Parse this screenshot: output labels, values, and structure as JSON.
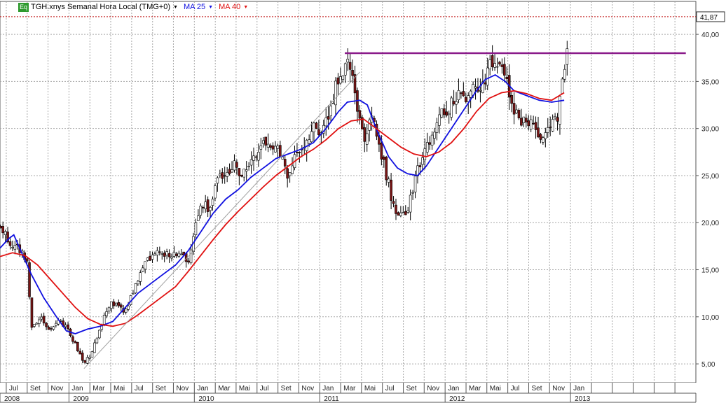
{
  "legend": {
    "badge": "Eq",
    "instrument": "TGH.xnys Semanal Hora Local (TMG+0)",
    "dropdown_glyph": "▼",
    "ma25_label": "MA 25",
    "ma40_label": "MA 40",
    "ma25_color": "#1010e0",
    "ma40_color": "#e01010"
  },
  "last_price_label": "41,87",
  "chart_data": {
    "type": "candlestick",
    "title": "TGH.xnys Semanal Hora Local (TMG+0)",
    "price_axis_side": "right",
    "y_ticks": [
      "5,00",
      "10,00",
      "15,00",
      "20,00",
      "25,00",
      "30,00",
      "35,00",
      "40,00"
    ],
    "y_tick_values": [
      5,
      10,
      15,
      20,
      25,
      30,
      35,
      40
    ],
    "ylim": [
      3.0,
      43.5
    ],
    "xlim": [
      2008.45,
      2014.0
    ],
    "x_tick_labels": [
      "Jul",
      "Set",
      "Nov",
      "Jan",
      "Mar",
      "Mai",
      "Jul",
      "Set",
      "Nov",
      "Jan",
      "Mar",
      "Mai",
      "Jul",
      "Set",
      "Nov",
      "Jan",
      "Mar",
      "Mai",
      "Jul",
      "Set",
      "Nov",
      "Jan",
      "Mar",
      "Mai",
      "Jul",
      "Set",
      "Nov",
      "Jan"
    ],
    "x_tick_values": [
      2008.5,
      2008.667,
      2008.833,
      2009.0,
      2009.167,
      2009.333,
      2009.5,
      2009.667,
      2009.833,
      2010.0,
      2010.167,
      2010.333,
      2010.5,
      2010.667,
      2010.833,
      2011.0,
      2011.167,
      2011.333,
      2011.5,
      2011.667,
      2011.833,
      2012.0,
      2012.167,
      2012.333,
      2012.5,
      2012.667,
      2012.833,
      2013.0
    ],
    "year_labels": [
      "2008",
      "2009",
      "2010",
      "2011",
      "2012",
      "2013"
    ],
    "year_values": [
      2008.45,
      2009.0,
      2010.0,
      2011.0,
      2012.0,
      2013.0
    ],
    "grid": true,
    "price_anchors": [
      [
        2008.45,
        19.5
      ],
      [
        2008.55,
        17.5
      ],
      [
        2008.62,
        17.0
      ],
      [
        2008.67,
        15.5
      ],
      [
        2008.7,
        9.0
      ],
      [
        2008.78,
        10.0
      ],
      [
        2008.85,
        8.5
      ],
      [
        2008.92,
        9.5
      ],
      [
        2008.98,
        9.0
      ],
      [
        2009.05,
        7.0
      ],
      [
        2009.12,
        5.0
      ],
      [
        2009.17,
        6.0
      ],
      [
        2009.22,
        7.5
      ],
      [
        2009.28,
        10.0
      ],
      [
        2009.33,
        11.5
      ],
      [
        2009.4,
        11.0
      ],
      [
        2009.45,
        10.5
      ],
      [
        2009.52,
        13.0
      ],
      [
        2009.58,
        15.0
      ],
      [
        2009.65,
        16.5
      ],
      [
        2009.72,
        17.0
      ],
      [
        2009.8,
        16.5
      ],
      [
        2009.88,
        17.0
      ],
      [
        2009.95,
        16.0
      ],
      [
        2010.0,
        19.0
      ],
      [
        2010.05,
        22.0
      ],
      [
        2010.12,
        21.5
      ],
      [
        2010.18,
        24.5
      ],
      [
        2010.25,
        25.0
      ],
      [
        2010.32,
        26.0
      ],
      [
        2010.38,
        25.0
      ],
      [
        2010.45,
        26.5
      ],
      [
        2010.52,
        28.0
      ],
      [
        2010.58,
        28.5
      ],
      [
        2010.65,
        28.5
      ],
      [
        2010.7,
        27.0
      ],
      [
        2010.75,
        25.0
      ],
      [
        2010.8,
        27.0
      ],
      [
        2010.85,
        28.0
      ],
      [
        2010.9,
        29.0
      ],
      [
        2010.95,
        30.0
      ],
      [
        2011.0,
        29.0
      ],
      [
        2011.05,
        31.0
      ],
      [
        2011.1,
        33.0
      ],
      [
        2011.15,
        35.5
      ],
      [
        2011.22,
        37.0
      ],
      [
        2011.27,
        34.5
      ],
      [
        2011.3,
        32.0
      ],
      [
        2011.35,
        29.0
      ],
      [
        2011.4,
        31.0
      ],
      [
        2011.45,
        30.0
      ],
      [
        2011.5,
        27.0
      ],
      [
        2011.55,
        24.0
      ],
      [
        2011.6,
        21.0
      ],
      [
        2011.65,
        20.5
      ],
      [
        2011.7,
        21.0
      ],
      [
        2011.72,
        22.5
      ],
      [
        2011.78,
        25.5
      ],
      [
        2011.83,
        27.0
      ],
      [
        2011.88,
        29.0
      ],
      [
        2011.93,
        30.0
      ],
      [
        2011.98,
        31.5
      ],
      [
        2012.05,
        32.5
      ],
      [
        2012.1,
        33.5
      ],
      [
        2012.15,
        33.0
      ],
      [
        2012.2,
        34.5
      ],
      [
        2012.25,
        34.0
      ],
      [
        2012.3,
        35.0
      ],
      [
        2012.35,
        36.5
      ],
      [
        2012.4,
        37.5
      ],
      [
        2012.45,
        37.0
      ],
      [
        2012.5,
        34.5
      ],
      [
        2012.55,
        32.0
      ],
      [
        2012.6,
        31.0
      ],
      [
        2012.65,
        30.5
      ],
      [
        2012.7,
        30.0
      ],
      [
        2012.75,
        29.5
      ],
      [
        2012.8,
        29.0
      ],
      [
        2012.85,
        31.0
      ],
      [
        2012.9,
        31.5
      ],
      [
        2012.93,
        35.0
      ],
      [
        2012.97,
        38.5
      ],
      [
        2012.99,
        41.87
      ]
    ],
    "series": [
      {
        "name": "MA 25",
        "color": "#1010e0",
        "points": [
          [
            2008.45,
            17.3
          ],
          [
            2008.52,
            18.3
          ],
          [
            2008.56,
            18.7
          ],
          [
            2008.6,
            17.5
          ],
          [
            2008.7,
            14.5
          ],
          [
            2008.8,
            12.0
          ],
          [
            2008.9,
            10.0
          ],
          [
            2008.98,
            8.5
          ],
          [
            2009.05,
            8.2
          ],
          [
            2009.15,
            8.7
          ],
          [
            2009.25,
            9.0
          ],
          [
            2009.35,
            9.5
          ],
          [
            2009.45,
            11.0
          ],
          [
            2009.55,
            12.5
          ],
          [
            2009.65,
            13.5
          ],
          [
            2009.75,
            14.5
          ],
          [
            2009.85,
            15.5
          ],
          [
            2009.95,
            17.0
          ],
          [
            2010.05,
            19.0
          ],
          [
            2010.15,
            21.0
          ],
          [
            2010.25,
            22.5
          ],
          [
            2010.35,
            23.5
          ],
          [
            2010.45,
            24.8
          ],
          [
            2010.55,
            25.8
          ],
          [
            2010.65,
            26.8
          ],
          [
            2010.75,
            27.3
          ],
          [
            2010.85,
            27.8
          ],
          [
            2010.95,
            28.5
          ],
          [
            2011.05,
            30.0
          ],
          [
            2011.15,
            31.8
          ],
          [
            2011.22,
            32.8
          ],
          [
            2011.32,
            33.0
          ],
          [
            2011.38,
            32.5
          ],
          [
            2011.45,
            30.0
          ],
          [
            2011.55,
            27.0
          ],
          [
            2011.62,
            25.8
          ],
          [
            2011.7,
            25.2
          ],
          [
            2011.78,
            25.0
          ],
          [
            2011.85,
            26.0
          ],
          [
            2011.95,
            28.0
          ],
          [
            2012.05,
            30.0
          ],
          [
            2012.15,
            32.0
          ],
          [
            2012.25,
            34.0
          ],
          [
            2012.32,
            35.2
          ],
          [
            2012.4,
            35.7
          ],
          [
            2012.48,
            35.0
          ],
          [
            2012.55,
            34.0
          ],
          [
            2012.65,
            33.5
          ],
          [
            2012.75,
            33.0
          ],
          [
            2012.85,
            32.8
          ],
          [
            2012.95,
            33.0
          ]
        ]
      },
      {
        "name": "MA 40",
        "color": "#e01010",
        "points": [
          [
            2008.45,
            16.4
          ],
          [
            2008.55,
            16.8
          ],
          [
            2008.65,
            16.5
          ],
          [
            2008.75,
            15.5
          ],
          [
            2008.85,
            14.0
          ],
          [
            2008.95,
            12.5
          ],
          [
            2009.05,
            11.0
          ],
          [
            2009.15,
            9.8
          ],
          [
            2009.25,
            9.2
          ],
          [
            2009.35,
            9.0
          ],
          [
            2009.45,
            9.3
          ],
          [
            2009.55,
            10.2
          ],
          [
            2009.65,
            11.2
          ],
          [
            2009.75,
            12.2
          ],
          [
            2009.85,
            13.2
          ],
          [
            2009.95,
            14.8
          ],
          [
            2010.05,
            16.5
          ],
          [
            2010.15,
            18.2
          ],
          [
            2010.25,
            19.8
          ],
          [
            2010.35,
            21.2
          ],
          [
            2010.45,
            22.5
          ],
          [
            2010.55,
            23.8
          ],
          [
            2010.65,
            25.0
          ],
          [
            2010.75,
            26.0
          ],
          [
            2010.85,
            27.0
          ],
          [
            2010.95,
            27.8
          ],
          [
            2011.05,
            28.8
          ],
          [
            2011.15,
            30.0
          ],
          [
            2011.25,
            30.8
          ],
          [
            2011.35,
            31.0
          ],
          [
            2011.45,
            30.0
          ],
          [
            2011.55,
            29.0
          ],
          [
            2011.65,
            28.0
          ],
          [
            2011.75,
            27.3
          ],
          [
            2011.85,
            27.0
          ],
          [
            2011.95,
            27.5
          ],
          [
            2012.05,
            28.5
          ],
          [
            2012.15,
            30.0
          ],
          [
            2012.25,
            31.8
          ],
          [
            2012.35,
            33.2
          ],
          [
            2012.45,
            33.8
          ],
          [
            2012.55,
            34.0
          ],
          [
            2012.65,
            33.7
          ],
          [
            2012.75,
            33.2
          ],
          [
            2012.85,
            33.0
          ],
          [
            2012.95,
            33.8
          ]
        ]
      }
    ],
    "annotations": [
      {
        "kind": "trendline",
        "color": "#a0a0a0",
        "from": [
          2009.12,
          4.5
        ],
        "to": [
          2011.32,
          36.0
        ]
      },
      {
        "kind": "horizontal_line",
        "color": "#8a1a8a",
        "from": [
          2011.2,
          38.0
        ],
        "to": [
          2013.92,
          38.0
        ]
      },
      {
        "kind": "last_price_dotted",
        "color": "#c01010",
        "value": 41.87
      }
    ]
  }
}
